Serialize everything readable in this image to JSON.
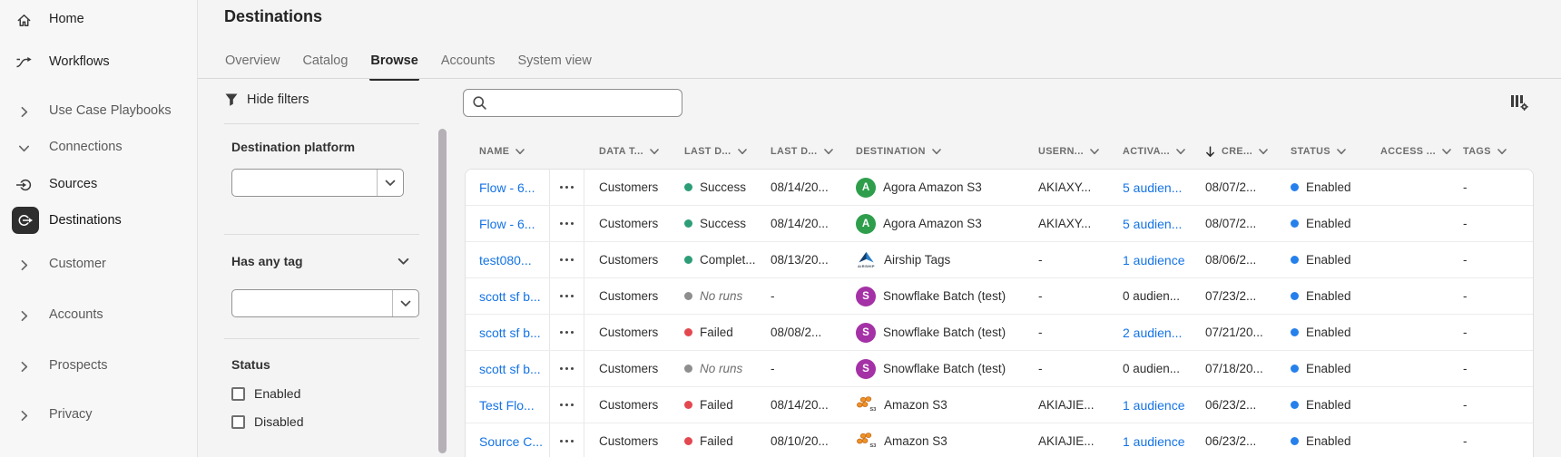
{
  "sidebar": {
    "items": [
      {
        "label": "Home",
        "icon": "home-icon",
        "active": false
      },
      {
        "label": "Workflows",
        "icon": "workflows-icon",
        "active": false
      },
      {
        "label": "Use Case Playbooks",
        "icon": "chevron-right-icon",
        "active": false
      },
      {
        "label": "Connections",
        "icon": "chevron-down-icon",
        "active": false
      },
      {
        "label": "Sources",
        "icon": "sources-icon",
        "active": false
      },
      {
        "label": "Destinations",
        "icon": "destinations-icon",
        "active": true
      },
      {
        "label": "Customer",
        "icon": "chevron-right-icon",
        "active": false
      },
      {
        "label": "Accounts",
        "icon": "chevron-right-icon",
        "active": false
      },
      {
        "label": "Prospects",
        "icon": "chevron-right-icon",
        "active": false
      },
      {
        "label": "Privacy",
        "icon": "chevron-right-icon",
        "active": false
      }
    ]
  },
  "header": {
    "title": "Destinations",
    "tabs": [
      {
        "label": "Overview",
        "active": false
      },
      {
        "label": "Catalog",
        "active": false
      },
      {
        "label": "Browse",
        "active": true
      },
      {
        "label": "Accounts",
        "active": false
      },
      {
        "label": "System view",
        "active": false
      }
    ]
  },
  "toolbar": {
    "hide_filters_label": "Hide filters",
    "search_value": "",
    "search_placeholder": ""
  },
  "filters": {
    "destination_platform": {
      "title": "Destination platform",
      "value": ""
    },
    "has_any_tag": {
      "title": "Has any tag",
      "value": ""
    },
    "status": {
      "title": "Status",
      "options": [
        {
          "label": "Enabled",
          "checked": false
        },
        {
          "label": "Disabled",
          "checked": false
        }
      ]
    }
  },
  "table": {
    "columns": [
      {
        "label": "NAME",
        "sorted": false
      },
      {
        "label": "DATA T...",
        "sorted": false
      },
      {
        "label": "LAST D...",
        "sorted": false
      },
      {
        "label": "LAST D...",
        "sorted": false
      },
      {
        "label": "DESTINATION",
        "sorted": false
      },
      {
        "label": "USERN...",
        "sorted": false
      },
      {
        "label": "ACTIVA...",
        "sorted": false
      },
      {
        "label": "CRE...",
        "sorted": true
      },
      {
        "label": "STATUS",
        "sorted": false
      },
      {
        "label": "ACCESS ...",
        "sorted": false
      },
      {
        "label": "TAGS",
        "sorted": false
      }
    ],
    "status_colors": {
      "success": "#2D9D78",
      "failed": "#E34850",
      "no_runs": "#8E8E8E",
      "enabled": "#2680EB"
    },
    "rows": [
      {
        "name": "Flow - 6...",
        "data_type": "Customers",
        "run_status": "Success",
        "run_status_type": "success",
        "last_run_date": "08/14/20...",
        "destination": "Agora Amazon S3",
        "destination_icon": "agora-avatar",
        "avatar_letter": "A",
        "avatar_color": "#2E9E4C",
        "username": "AKIAXY...",
        "activation": "5 audien...",
        "activation_is_link": true,
        "created": "08/07/2...",
        "status": "Enabled",
        "status_type": "enabled",
        "access": "",
        "tags": "-"
      },
      {
        "name": "Flow - 6...",
        "data_type": "Customers",
        "run_status": "Success",
        "run_status_type": "success",
        "last_run_date": "08/14/20...",
        "destination": "Agora Amazon S3",
        "destination_icon": "agora-avatar",
        "avatar_letter": "A",
        "avatar_color": "#2E9E4C",
        "username": "AKIAXY...",
        "activation": "5 audien...",
        "activation_is_link": true,
        "created": "08/07/2...",
        "status": "Enabled",
        "status_type": "enabled",
        "access": "",
        "tags": "-"
      },
      {
        "name": "test080...",
        "data_type": "Customers",
        "run_status": "Complet...",
        "run_status_type": "success",
        "last_run_date": "08/13/20...",
        "destination": "Airship Tags",
        "destination_icon": "airship-logo",
        "avatar_letter": "",
        "avatar_color": "",
        "username": "-",
        "activation": "1 audience",
        "activation_is_link": true,
        "created": "08/06/2...",
        "status": "Enabled",
        "status_type": "enabled",
        "access": "",
        "tags": "-"
      },
      {
        "name": "scott sf b...",
        "data_type": "Customers",
        "run_status": "No runs",
        "run_status_type": "no_runs",
        "last_run_date": "-",
        "destination": "Snowflake Batch (test)",
        "destination_icon": "snowflake-avatar",
        "avatar_letter": "S",
        "avatar_color": "#A431A6",
        "username": "-",
        "activation": "0 audien...",
        "activation_is_link": false,
        "created": "07/23/2...",
        "status": "Enabled",
        "status_type": "enabled",
        "access": "",
        "tags": "-"
      },
      {
        "name": "scott sf b...",
        "data_type": "Customers",
        "run_status": "Failed",
        "run_status_type": "failed",
        "last_run_date": "08/08/2...",
        "destination": "Snowflake Batch (test)",
        "destination_icon": "snowflake-avatar",
        "avatar_letter": "S",
        "avatar_color": "#A431A6",
        "username": "-",
        "activation": "2 audien...",
        "activation_is_link": true,
        "created": "07/21/20...",
        "status": "Enabled",
        "status_type": "enabled",
        "access": "",
        "tags": "-"
      },
      {
        "name": "scott sf b...",
        "data_type": "Customers",
        "run_status": "No runs",
        "run_status_type": "no_runs",
        "last_run_date": "-",
        "destination": "Snowflake Batch (test)",
        "destination_icon": "snowflake-avatar",
        "avatar_letter": "S",
        "avatar_color": "#A431A6",
        "username": "-",
        "activation": "0 audien...",
        "activation_is_link": false,
        "created": "07/18/20...",
        "status": "Enabled",
        "status_type": "enabled",
        "access": "",
        "tags": "-"
      },
      {
        "name": "Test Flo...",
        "data_type": "Customers",
        "run_status": "Failed",
        "run_status_type": "failed",
        "last_run_date": "08/14/20...",
        "destination": "Amazon S3",
        "destination_icon": "amazon-s3-logo",
        "avatar_letter": "",
        "avatar_color": "",
        "username": "AKIAJIE...",
        "activation": "1 audience",
        "activation_is_link": true,
        "created": "06/23/2...",
        "status": "Enabled",
        "status_type": "enabled",
        "access": "",
        "tags": "-"
      },
      {
        "name": "Source C...",
        "data_type": "Customers",
        "run_status": "Failed",
        "run_status_type": "failed",
        "last_run_date": "08/10/20...",
        "destination": "Amazon S3",
        "destination_icon": "amazon-s3-logo",
        "avatar_letter": "",
        "avatar_color": "",
        "username": "AKIAJIE...",
        "activation": "1 audience",
        "activation_is_link": true,
        "created": "06/23/2...",
        "status": "Enabled",
        "status_type": "enabled",
        "access": "",
        "tags": "-"
      }
    ]
  }
}
